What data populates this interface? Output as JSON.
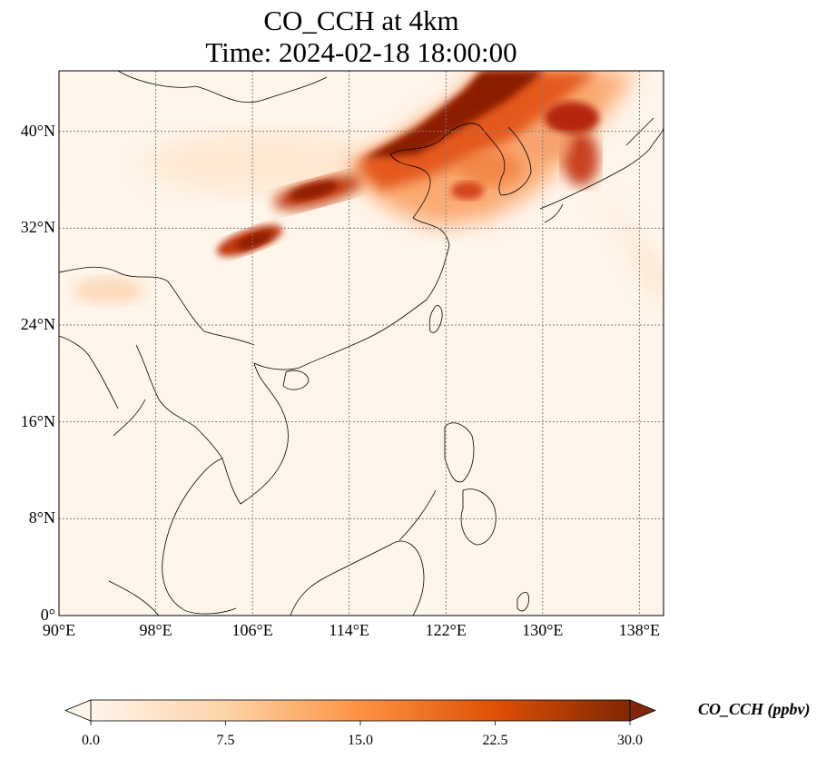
{
  "title": {
    "line1": "CO_CCH at 4km",
    "line2": "Time: 2024-02-18 18:00:00"
  },
  "map": {
    "extent": {
      "lon_min": 90,
      "lon_max": 140,
      "lat_min": 0,
      "lat_max": 45
    },
    "gridlines": true,
    "lat_ticks": [
      "40°N",
      "32°N",
      "24°N",
      "16°N",
      "8°N",
      "0°"
    ],
    "lat_values": [
      40,
      32,
      24,
      16,
      8,
      0
    ],
    "lon_ticks": [
      "90°E",
      "98°E",
      "106°E",
      "114°E",
      "122°E",
      "130°E",
      "138°E"
    ],
    "lon_values": [
      90,
      98,
      106,
      114,
      122,
      130,
      138
    ],
    "background_color": "#fff5eb",
    "coastline_color": "#000000"
  },
  "colorbar": {
    "label": "CO_CCH (ppbv)",
    "ticks": [
      "0.0",
      "7.5",
      "15.0",
      "22.5",
      "30.0"
    ],
    "tick_values": [
      0,
      7.5,
      15,
      22.5,
      30
    ],
    "colormap": [
      "#fff5eb",
      "#fdd3a8",
      "#fd9243",
      "#df5005",
      "#7f2704"
    ],
    "vmin": 0,
    "vmax": 30
  }
}
